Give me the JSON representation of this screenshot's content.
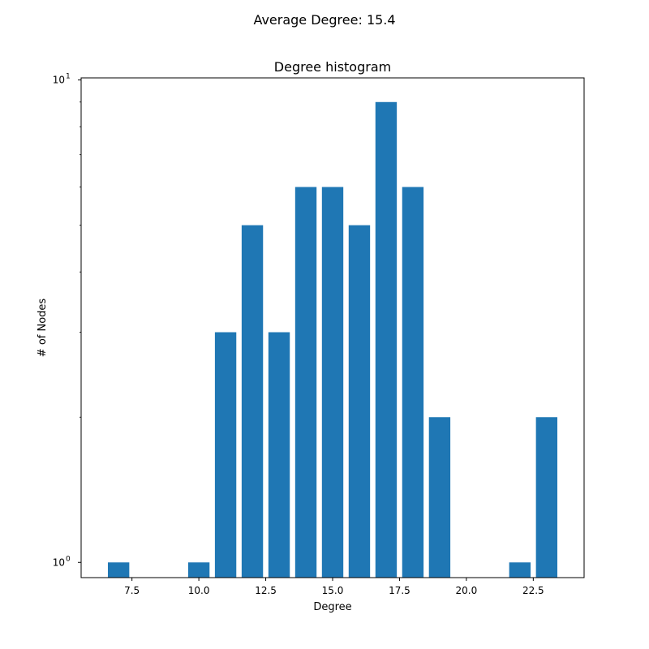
{
  "figure": {
    "suptitle": "Average Degree: 15.4"
  },
  "chart_data": {
    "type": "bar",
    "title": "Degree histogram",
    "xlabel": "Degree",
    "ylabel": "# of Nodes",
    "yscale": "log",
    "x": [
      7,
      10,
      11,
      12,
      13,
      14,
      15,
      16,
      17,
      18,
      19,
      22,
      23
    ],
    "values": [
      1,
      1,
      3,
      5,
      3,
      6,
      6,
      5,
      9,
      6,
      2,
      1,
      2
    ],
    "xlim": [
      5.6,
      24.4
    ],
    "ylim": [
      0.93,
      10.1
    ],
    "xticks": [
      {
        "value": 7.5,
        "label": "7.5"
      },
      {
        "value": 10.0,
        "label": "10.0"
      },
      {
        "value": 12.5,
        "label": "12.5"
      },
      {
        "value": 15.0,
        "label": "15.0"
      },
      {
        "value": 17.5,
        "label": "17.5"
      },
      {
        "value": 20.0,
        "label": "20.0"
      },
      {
        "value": 22.5,
        "label": "22.5"
      }
    ],
    "yticks": [
      {
        "value": 1,
        "base": "10",
        "exp": "0"
      },
      {
        "value": 10,
        "base": "10",
        "exp": "1"
      }
    ],
    "bar_color": "#1f77b4",
    "grid": false,
    "legend": "none"
  }
}
